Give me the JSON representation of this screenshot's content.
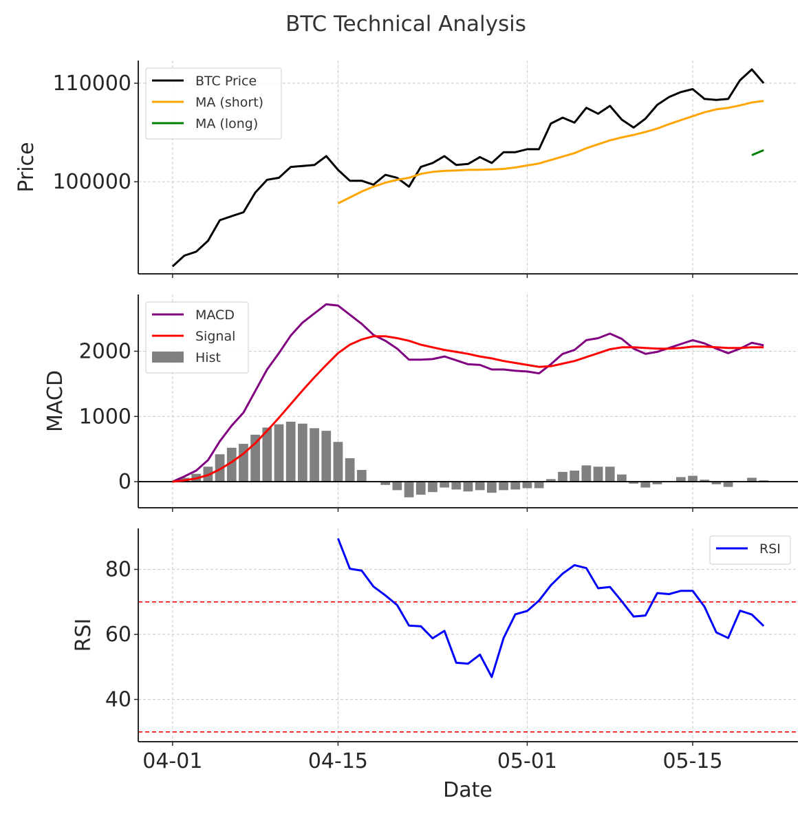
{
  "figure": {
    "title": "BTC Technical Analysis",
    "xlabel": "Date"
  },
  "colors": {
    "price": "#000000",
    "ma_short": "#ffa500",
    "ma_long": "#008000",
    "macd": "#800080",
    "signal": "#ff0000",
    "hist": "#808080",
    "rsi": "#0000ff",
    "rsi_bounds": "#ff0000",
    "grid": "#c8c8c8",
    "axis": "#262626"
  },
  "chart_data": [
    {
      "id": "price",
      "type": "line",
      "ylabel": "Price",
      "ylim": [
        90650,
        112300
      ],
      "yticks": [
        100000,
        110000
      ],
      "ytick_labels": [
        "100000",
        "110000"
      ],
      "xlim": [
        -2.9,
        52.9
      ],
      "xticks": [
        0,
        14,
        30,
        44
      ],
      "xtick_labels": [
        "04-01",
        "04-15",
        "05-01",
        "05-15"
      ],
      "grid": true,
      "legend": "upper left",
      "series": [
        {
          "name": "BTC Price",
          "color_key": "price",
          "x_start": 0,
          "values": [
            91400,
            92500,
            92900,
            94000,
            96100,
            96500,
            96900,
            98900,
            100200,
            100400,
            101500,
            101600,
            101700,
            102600,
            101200,
            100100,
            100100,
            99700,
            100700,
            100400,
            99500,
            101500,
            101900,
            102600,
            101700,
            101800,
            102500,
            101900,
            103000,
            103000,
            103300,
            103300,
            105900,
            106500,
            106000,
            107500,
            106900,
            107700,
            106300,
            105500,
            106400,
            107800,
            108600,
            109100,
            109400,
            108400,
            108300,
            108400,
            110300,
            111400,
            110000
          ]
        },
        {
          "name": "MA (short)",
          "color_key": "ma_short",
          "x_start": 14,
          "values": [
            97800,
            98400,
            99000,
            99500,
            99900,
            100200,
            100400,
            100800,
            101000,
            101100,
            101150,
            101200,
            101220,
            101250,
            101300,
            101450,
            101650,
            101850,
            102200,
            102550,
            102900,
            103400,
            103800,
            104200,
            104500,
            104750,
            105050,
            105400,
            105850,
            106250,
            106650,
            107050,
            107350,
            107500,
            107750,
            108050,
            108200
          ]
        },
        {
          "name": "MA (long)",
          "color_key": "ma_long",
          "x_start": 49,
          "values": [
            102700,
            103200
          ]
        }
      ]
    },
    {
      "id": "macd",
      "type": "line",
      "ylabel": "MACD",
      "ylim": [
        -400,
        2870
      ],
      "yticks": [
        0,
        1000,
        2000
      ],
      "ytick_labels": [
        "0",
        "1000",
        "2000"
      ],
      "grid": true,
      "legend": "upper left",
      "series": [
        {
          "name": "MACD",
          "color_key": "macd",
          "values": [
            0,
            80,
            170,
            330,
            620,
            860,
            1060,
            1390,
            1720,
            1970,
            2240,
            2440,
            2580,
            2720,
            2700,
            2560,
            2420,
            2250,
            2160,
            2040,
            1870,
            1870,
            1880,
            1920,
            1860,
            1800,
            1790,
            1720,
            1720,
            1700,
            1690,
            1660,
            1800,
            1960,
            2020,
            2170,
            2200,
            2270,
            2190,
            2040,
            1960,
            1990,
            2050,
            2110,
            2170,
            2120,
            2040,
            1970,
            2040,
            2130,
            2090
          ]
        },
        {
          "name": "Signal",
          "color_key": "signal",
          "values": [
            0,
            20,
            50,
            100,
            190,
            300,
            430,
            590,
            780,
            980,
            1190,
            1400,
            1600,
            1790,
            1970,
            2100,
            2180,
            2230,
            2230,
            2200,
            2160,
            2100,
            2060,
            2020,
            1990,
            1960,
            1920,
            1890,
            1850,
            1820,
            1790,
            1760,
            1770,
            1810,
            1850,
            1910,
            1970,
            2030,
            2060,
            2060,
            2050,
            2040,
            2040,
            2050,
            2070,
            2070,
            2060,
            2050,
            2050,
            2060,
            2060
          ]
        }
      ],
      "bars": {
        "name": "Hist",
        "color_key": "hist",
        "values": [
          0,
          60,
          120,
          230,
          420,
          520,
          580,
          720,
          830,
          880,
          920,
          890,
          820,
          780,
          610,
          360,
          180,
          0,
          -50,
          -130,
          -240,
          -200,
          -160,
          -90,
          -120,
          -150,
          -130,
          -170,
          -130,
          -120,
          -100,
          -100,
          40,
          150,
          170,
          250,
          230,
          230,
          110,
          -30,
          -90,
          -40,
          0,
          70,
          90,
          30,
          -40,
          -80,
          -10,
          60,
          20
        ]
      }
    },
    {
      "id": "rsi",
      "type": "line",
      "ylabel": "RSI",
      "ylim": [
        27,
        92.6
      ],
      "yticks": [
        40,
        60,
        80
      ],
      "ytick_labels": [
        "40",
        "60",
        "80"
      ],
      "grid": true,
      "legend": "upper right",
      "hlines": [
        30,
        70
      ],
      "series": [
        {
          "name": "RSI",
          "color_key": "rsi",
          "x_start": 14,
          "values": [
            89.5,
            80.2,
            79.6,
            74.7,
            72.0,
            69.0,
            62.7,
            62.5,
            58.8,
            61.1,
            51.3,
            51.0,
            53.8,
            46.9,
            58.9,
            66.2,
            67.2,
            70.4,
            75.1,
            78.7,
            81.3,
            80.4,
            74.2,
            74.6,
            70.2,
            65.5,
            65.8,
            72.7,
            72.4,
            73.4,
            73.4,
            68.5,
            60.6,
            58.9,
            67.3,
            66.1,
            62.6
          ]
        }
      ]
    }
  ]
}
